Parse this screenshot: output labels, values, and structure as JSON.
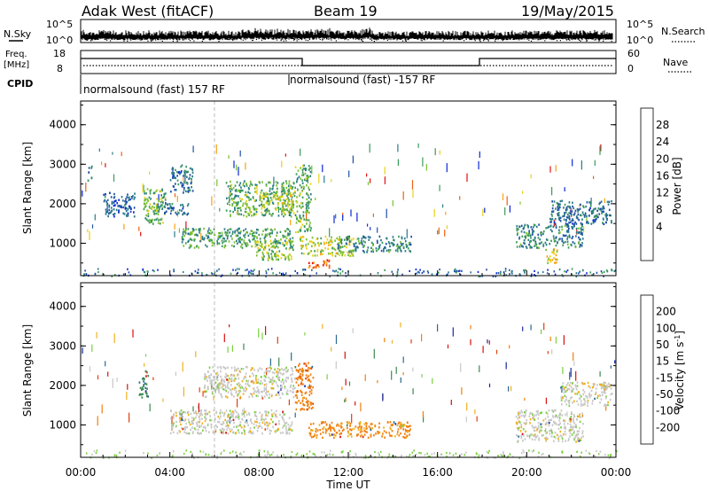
{
  "header": {
    "station": "Adak West (fitACF)",
    "beam": "Beam 19",
    "date": "19/May/2015"
  },
  "status_panels": {
    "nsky_label": "N.Sky",
    "nsky_ticks": [
      "10^5",
      "10^0"
    ],
    "nsearch_label": "N.Search",
    "nsearch_ticks": [
      "10^5",
      "10^0"
    ],
    "freq_label_1": "Freq.",
    "freq_label_2": "[MHz]",
    "freq_ticks": [
      "18",
      "8"
    ],
    "nave_label": "Nave",
    "nave_ticks": [
      "60",
      "0"
    ],
    "cpid_label": "CPID",
    "cpid_segments": [
      "normalsound (fast) 157 RF",
      "normalsound (fast) -157 RF"
    ]
  },
  "chart_data": [
    {
      "type": "heatmap",
      "name": "power",
      "ylabel": "Slant Range [km]",
      "xlabel": "Time UT",
      "y_ticks": [
        "4000",
        "3000",
        "2000",
        "1000"
      ],
      "x_ticks": [
        "00:00",
        "04:00",
        "08:00",
        "12:00",
        "16:00",
        "20:00",
        "00:00"
      ],
      "colorbar": {
        "label": "Power [dB]",
        "ticks": [
          "28",
          "24",
          "20",
          "16",
          "12",
          "8",
          "4"
        ],
        "colors": [
          "#0a28d8",
          "#2050a8",
          "#2a7a8a",
          "#3a9a5a",
          "#7ac030",
          "#e8d018",
          "#f8a010",
          "#f06010",
          "#e01010"
        ]
      },
      "regions": [
        {
          "t0": 0.3,
          "t1": 0.5,
          "r0": 2600,
          "r1": 3000,
          "p": 10
        },
        {
          "t0": 1.0,
          "t1": 2.4,
          "r0": 1700,
          "r1": 2300,
          "p": 6
        },
        {
          "t0": 2.8,
          "t1": 3.8,
          "r0": 1500,
          "r1": 2400,
          "p": 14
        },
        {
          "t0": 3.4,
          "t1": 4.8,
          "r0": 1750,
          "r1": 2050,
          "p": 8
        },
        {
          "t0": 4.0,
          "t1": 5.0,
          "r0": 2300,
          "r1": 3000,
          "p": 8
        },
        {
          "t0": 4.5,
          "t1": 9.5,
          "r0": 900,
          "r1": 1400,
          "p": 12
        },
        {
          "t0": 6.5,
          "t1": 9.6,
          "r0": 1700,
          "r1": 2600,
          "p": 14
        },
        {
          "t0": 8.0,
          "t1": 9.5,
          "r0": 1900,
          "r1": 2300,
          "p": 18
        },
        {
          "t0": 7.8,
          "t1": 9.5,
          "r0": 600,
          "r1": 1100,
          "p": 16
        },
        {
          "t0": 9.6,
          "t1": 10.3,
          "r0": 1300,
          "r1": 3000,
          "p": 14
        },
        {
          "t0": 9.8,
          "t1": 12.2,
          "r0": 700,
          "r1": 1200,
          "p": 18
        },
        {
          "t0": 10.2,
          "t1": 11.2,
          "r0": 400,
          "r1": 600,
          "p": 26
        },
        {
          "t0": 11.5,
          "t1": 14.8,
          "r0": 800,
          "r1": 1200,
          "p": 10
        },
        {
          "t0": 19.5,
          "t1": 22.5,
          "r0": 900,
          "r1": 1500,
          "p": 10
        },
        {
          "t0": 20.8,
          "t1": 21.4,
          "r0": 500,
          "r1": 900,
          "p": 20
        },
        {
          "t0": 21.0,
          "t1": 23.8,
          "r0": 1500,
          "r1": 2100,
          "p": 8
        }
      ]
    },
    {
      "type": "heatmap",
      "name": "velocity",
      "ylabel": "Slant Range [km]",
      "xlabel": "Time UT",
      "y_ticks": [
        "4000",
        "3000",
        "2000",
        "1000"
      ],
      "x_ticks": [
        "00:00",
        "04:00",
        "08:00",
        "12:00",
        "16:00",
        "20:00",
        "00:00"
      ],
      "colorbar": {
        "label": "Velocity [m s^-1]",
        "ticks": [
          "200",
          "100",
          "50",
          "15",
          "-15",
          "-50",
          "-100",
          "-200"
        ],
        "colors": [
          "#1a2aa0",
          "#2a6a90",
          "#3a8a50",
          "#7ad040",
          "#c8c8c8",
          "#f0b020",
          "#f08010",
          "#e04010",
          "#d81010"
        ]
      },
      "regions": [
        {
          "t0": 2.6,
          "t1": 3.0,
          "r0": 1700,
          "r1": 2400,
          "v": 60
        },
        {
          "t0": 4.0,
          "t1": 9.5,
          "r0": 800,
          "r1": 1400,
          "v": 0
        },
        {
          "t0": 5.5,
          "t1": 9.6,
          "r0": 1700,
          "r1": 2500,
          "v": 0
        },
        {
          "t0": 9.6,
          "t1": 10.4,
          "r0": 1400,
          "r1": 2600,
          "v": -60
        },
        {
          "t0": 10.2,
          "t1": 14.8,
          "r0": 700,
          "r1": 1100,
          "v": -40
        },
        {
          "t0": 19.5,
          "t1": 22.5,
          "r0": 600,
          "r1": 1400,
          "v": 0
        },
        {
          "t0": 21.5,
          "t1": 23.8,
          "r0": 1500,
          "r1": 2100,
          "v": 0
        }
      ]
    }
  ]
}
